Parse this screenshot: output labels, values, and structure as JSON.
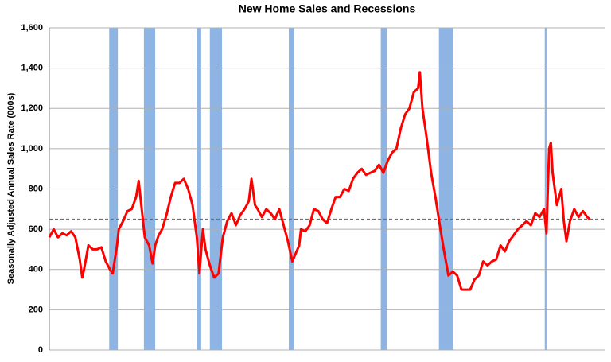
{
  "chart_data": {
    "type": "line",
    "title": "New Home Sales and Recessions",
    "y_label": "Seasonally Adjusted Annual Sales Rate (000s)",
    "xlim": [
      1963,
      2027
    ],
    "ylim": [
      0,
      1600
    ],
    "yticks": [
      0,
      200,
      400,
      600,
      800,
      {
        "value": 1000,
        "label": "1,000"
      },
      {
        "value": 1200,
        "label": "1,200"
      },
      {
        "value": 1400,
        "label": "1,400"
      },
      {
        "value": 1600,
        "label": "1,600"
      }
    ],
    "grid": true,
    "reference_line": 650,
    "recession_color": "#8db4e2",
    "recessions": [
      [
        1969.9,
        1970.9
      ],
      [
        1973.9,
        1975.2
      ],
      [
        1980.0,
        1980.5
      ],
      [
        1981.5,
        1982.9
      ],
      [
        1990.6,
        1991.2
      ],
      [
        2001.2,
        2001.9
      ],
      [
        2007.9,
        2009.5
      ],
      [
        2020.1,
        2020.3
      ]
    ],
    "series": [
      {
        "name": "New Home Sales",
        "color": "#ff0000",
        "x": [
          1963.0,
          1963.5,
          1964,
          1964.5,
          1965,
          1965.5,
          1966,
          1966.5,
          1966.8,
          1967,
          1967.5,
          1968,
          1968.5,
          1969,
          1969.5,
          1970,
          1970.3,
          1970.8,
          1971,
          1971.5,
          1972,
          1972.5,
          1973,
          1973.3,
          1973.7,
          1974,
          1974.5,
          1974.9,
          1975.2,
          1975.6,
          1976,
          1976.5,
          1977,
          1977.5,
          1978,
          1978.5,
          1979,
          1979.5,
          1980.0,
          1980.3,
          1980.7,
          1981,
          1981.5,
          1982,
          1982.5,
          1983,
          1983.5,
          1984,
          1984.5,
          1985,
          1985.5,
          1986,
          1986.3,
          1986.7,
          1987,
          1987.5,
          1988,
          1988.5,
          1989,
          1989.5,
          1990,
          1990.5,
          1991,
          1991.3,
          1991.8,
          1992,
          1992.5,
          1993,
          1993.5,
          1994,
          1994.5,
          1995,
          1995.5,
          1996,
          1996.5,
          1997,
          1997.5,
          1998,
          1998.5,
          1999,
          1999.5,
          2000,
          2000.5,
          2001,
          2001.5,
          2002,
          2002.5,
          2003,
          2003.5,
          2004,
          2004.5,
          2005,
          2005.5,
          2005.7,
          2006,
          2006.5,
          2007,
          2007.5,
          2008,
          2008.5,
          2009,
          2009.5,
          2010,
          2010.5,
          2011,
          2011.5,
          2012,
          2012.5,
          2013,
          2013.5,
          2014,
          2014.5,
          2015,
          2015.5,
          2016,
          2016.5,
          2017,
          2017.5,
          2018,
          2018.5,
          2019,
          2019.5,
          2020.0,
          2020.3,
          2020.6,
          2020.8,
          2021,
          2021.5,
          2022,
          2022.3,
          2022.6,
          2023,
          2023.5,
          2024,
          2024.5,
          2025,
          2025.3
        ],
        "values": [
          560,
          600,
          560,
          580,
          570,
          590,
          560,
          450,
          360,
          400,
          520,
          500,
          500,
          510,
          440,
          400,
          380,
          520,
          600,
          640,
          690,
          700,
          760,
          840,
          680,
          560,
          520,
          430,
          520,
          570,
          600,
          670,
          760,
          830,
          830,
          850,
          800,
          720,
          560,
          380,
          600,
          500,
          420,
          360,
          380,
          560,
          640,
          680,
          620,
          670,
          700,
          740,
          850,
          720,
          700,
          660,
          700,
          680,
          650,
          700,
          620,
          540,
          440,
          470,
          520,
          600,
          590,
          620,
          700,
          690,
          650,
          630,
          700,
          760,
          760,
          800,
          790,
          850,
          880,
          900,
          870,
          880,
          890,
          920,
          880,
          940,
          980,
          1000,
          1100,
          1170,
          1200,
          1280,
          1300,
          1380,
          1200,
          1050,
          880,
          760,
          620,
          490,
          370,
          390,
          370,
          300,
          300,
          300,
          350,
          370,
          440,
          420,
          440,
          450,
          520,
          490,
          540,
          570,
          600,
          620,
          640,
          620,
          680,
          660,
          700,
          580,
          1000,
          1030,
          880,
          720,
          800,
          640,
          540,
          640,
          700,
          660,
          690,
          660,
          650
        ]
      }
    ]
  }
}
